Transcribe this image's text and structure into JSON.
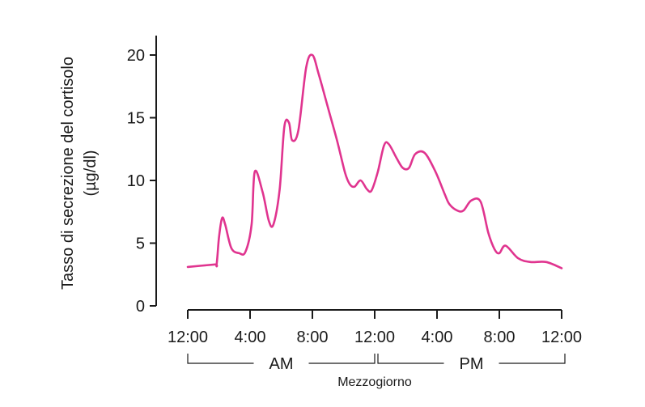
{
  "chart_data": {
    "type": "line",
    "ylabel_line1": "Tasso di secrezione del cortisolo",
    "ylabel_line2": "(µg/dl)",
    "ylim": [
      0,
      21
    ],
    "yticks": [
      0,
      5,
      10,
      15,
      20
    ],
    "xlim": [
      0,
      24
    ],
    "xticks": [
      {
        "x": 0,
        "label": "12:00"
      },
      {
        "x": 4,
        "label": "4:00"
      },
      {
        "x": 8,
        "label": "8:00"
      },
      {
        "x": 12,
        "label": "12:00"
      },
      {
        "x": 16,
        "label": "4:00"
      },
      {
        "x": 20,
        "label": "8:00"
      },
      {
        "x": 24,
        "label": "12:00"
      }
    ],
    "periods": [
      {
        "label": "AM",
        "from": 0,
        "to": 12
      },
      {
        "label": "PM",
        "from": 12,
        "to": 24
      }
    ],
    "noon_label": "Mezzogiorno",
    "series": [
      {
        "color": "#e0348f",
        "x": [
          0,
          1.7,
          1.85,
          2.0,
          2.2,
          2.4,
          2.8,
          3.3,
          3.7,
          4.1,
          4.3,
          4.8,
          5.2,
          5.5,
          5.9,
          6.2,
          6.5,
          6.7,
          7.1,
          7.6,
          8.0,
          8.4,
          9.0,
          9.6,
          10.1,
          10.4,
          10.7,
          11.1,
          11.5,
          11.8,
          12.2,
          12.6,
          12.9,
          13.4,
          13.8,
          14.2,
          14.6,
          15.2,
          15.9,
          16.5,
          16.8,
          17.3,
          17.7,
          18.2,
          18.8,
          19.3,
          19.7,
          20.0,
          20.4,
          21.2,
          22.0,
          23.0,
          24.0
        ],
        "y": [
          3.1,
          3.3,
          3.3,
          5.4,
          7.0,
          6.5,
          4.6,
          4.2,
          4.3,
          6.5,
          10.7,
          9.1,
          6.8,
          6.5,
          9.3,
          14.3,
          14.6,
          13.2,
          14.0,
          19.0,
          20.0,
          18.5,
          15.8,
          13.1,
          10.6,
          9.7,
          9.5,
          10.0,
          9.3,
          9.2,
          10.7,
          12.8,
          12.9,
          11.8,
          11.0,
          11.0,
          12.1,
          12.2,
          10.7,
          8.9,
          8.1,
          7.6,
          7.6,
          8.4,
          8.3,
          5.8,
          4.5,
          4.2,
          4.8,
          3.8,
          3.5,
          3.5,
          3.0
        ]
      }
    ]
  }
}
